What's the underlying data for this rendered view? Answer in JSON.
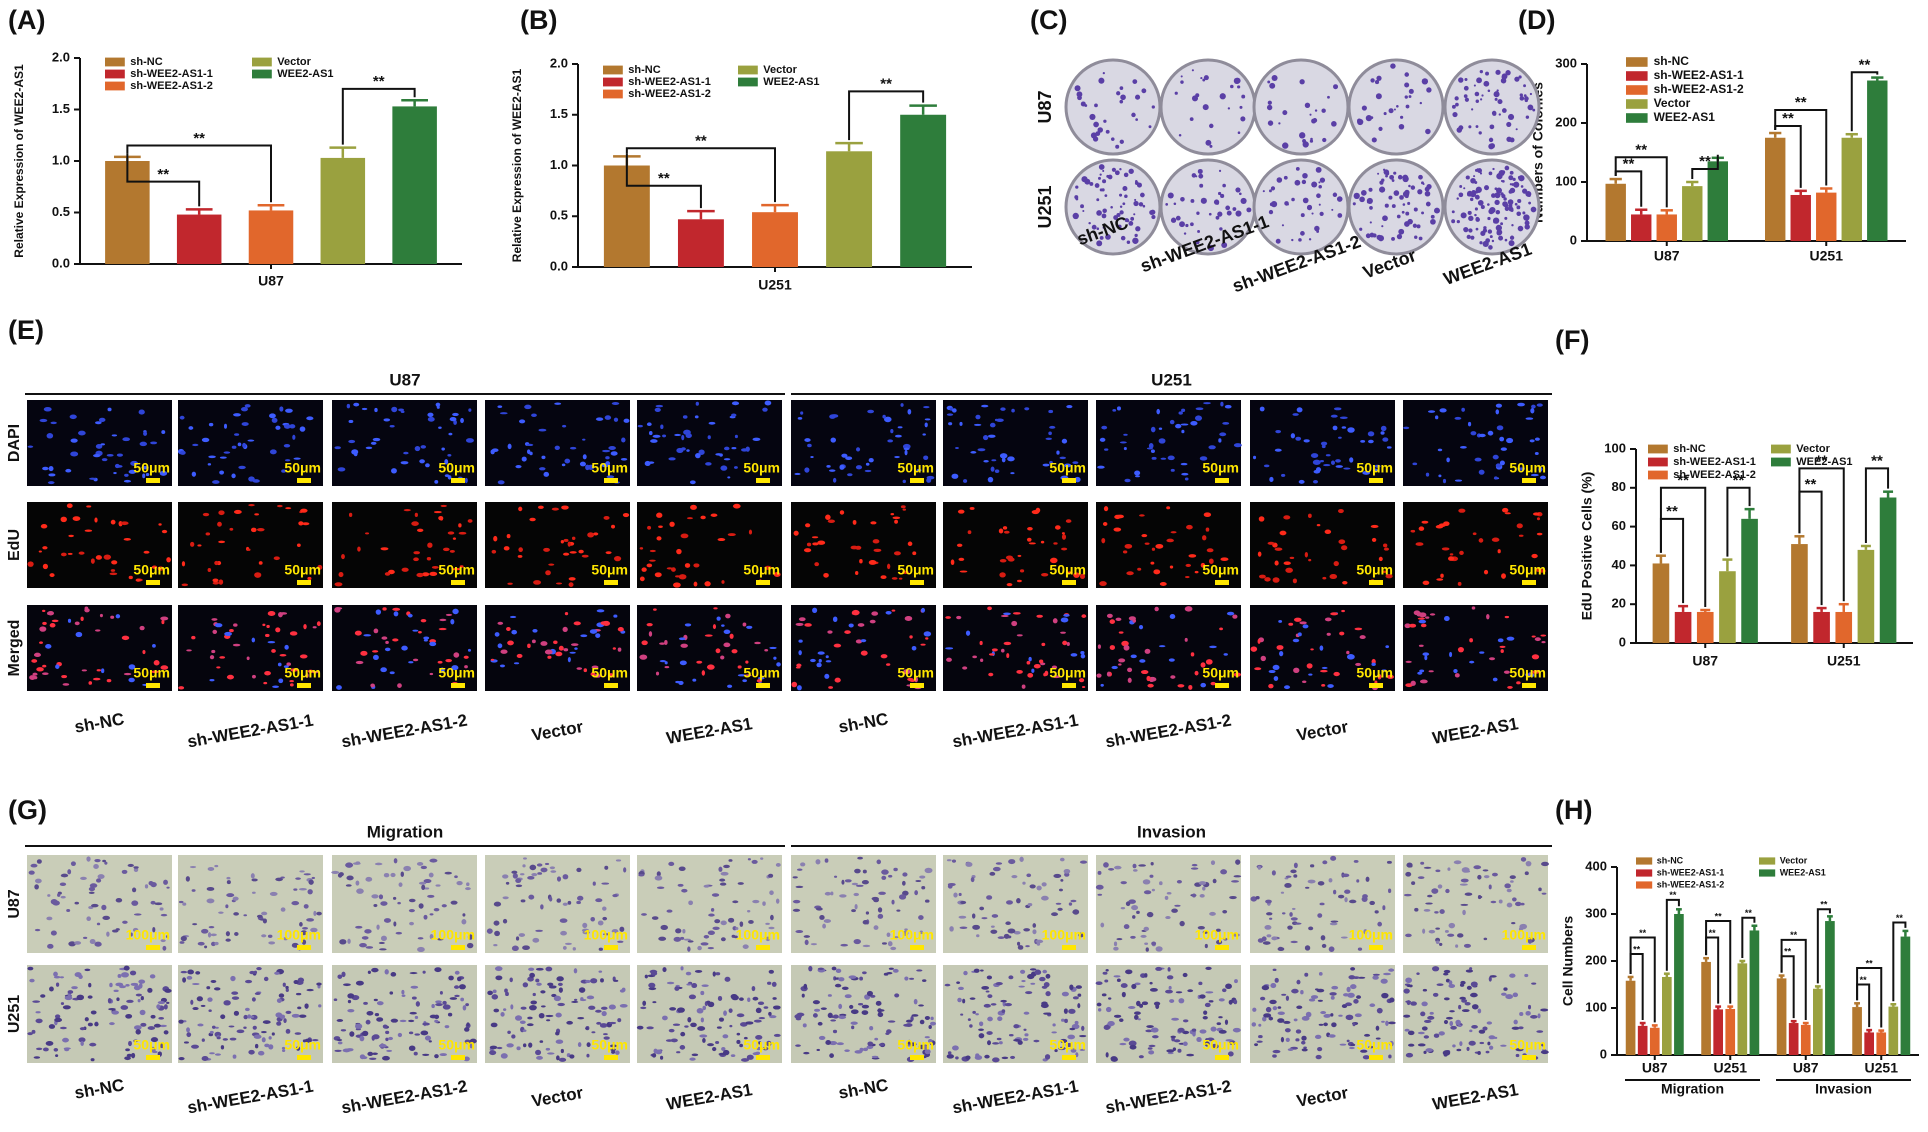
{
  "chart_data": [
    {
      "type": "bar",
      "panel": "(A)",
      "ylabel": "Relative Expression of WEE2-AS1",
      "categories": [
        "U87"
      ],
      "series": [
        {
          "name": "sh-NC",
          "color": "#b3782f",
          "values": [
            1.0
          ],
          "errors": [
            0.04
          ]
        },
        {
          "name": "sh-WEE2-AS1-1",
          "color": "#c1272d",
          "values": [
            0.48
          ],
          "errors": [
            0.05
          ]
        },
        {
          "name": "sh-WEE2-AS1-2",
          "color": "#e1672c",
          "values": [
            0.52
          ],
          "errors": [
            0.05
          ]
        },
        {
          "name": "Vector",
          "color": "#9aa13f",
          "values": [
            1.03
          ],
          "errors": [
            0.1
          ]
        },
        {
          "name": "WEE2-AS1",
          "color": "#2e7d3b",
          "values": [
            1.53
          ],
          "errors": [
            0.06
          ]
        }
      ],
      "ylim": [
        0,
        2
      ],
      "yticks": [
        {
          "value": 0,
          "label": "0.0"
        },
        0.5,
        {
          "value": 1,
          "label": "1.0"
        },
        1.5,
        {
          "value": 2,
          "label": "2.0"
        }
      ],
      "annotations": [
        "**",
        "**",
        "**"
      ]
    },
    {
      "type": "bar",
      "panel": "(B)",
      "ylabel": "Relative Expression of WEE2-AS1",
      "categories": [
        "U251"
      ],
      "series": [
        {
          "name": "sh-NC",
          "color": "#b3782f",
          "values": [
            1.0
          ],
          "errors": [
            0.09
          ]
        },
        {
          "name": "sh-WEE2-AS1-1",
          "color": "#c1272d",
          "values": [
            0.47
          ],
          "errors": [
            0.08
          ]
        },
        {
          "name": "sh-WEE2-AS1-2",
          "color": "#e1672c",
          "values": [
            0.54
          ],
          "errors": [
            0.07
          ]
        },
        {
          "name": "Vector",
          "color": "#9aa13f",
          "values": [
            1.14
          ],
          "errors": [
            0.08
          ]
        },
        {
          "name": "WEE2-AS1",
          "color": "#2e7d3b",
          "values": [
            1.5
          ],
          "errors": [
            0.09
          ]
        }
      ],
      "ylim": [
        0,
        2
      ],
      "yticks": [
        {
          "value": 0,
          "label": "0.0"
        },
        0.5,
        {
          "value": 1,
          "label": "1.0"
        },
        1.5,
        {
          "value": 2,
          "label": "2.0"
        }
      ],
      "annotations": [
        "**",
        "**",
        "**"
      ]
    },
    {
      "type": "bar",
      "panel": "(D)",
      "ylabel": "Numbers of Colonies",
      "categories": [
        "U87",
        "U251"
      ],
      "series": [
        {
          "name": "sh-NC",
          "color": "#b3782f",
          "values": [
            97,
            175
          ],
          "errors": [
            8,
            8
          ]
        },
        {
          "name": "sh-WEE2-AS1-1",
          "color": "#c1272d",
          "values": [
            45,
            78
          ],
          "errors": [
            8,
            7
          ]
        },
        {
          "name": "sh-WEE2-AS1-2",
          "color": "#e1672c",
          "values": [
            45,
            82
          ],
          "errors": [
            7,
            7
          ]
        },
        {
          "name": "Vector",
          "color": "#9aa13f",
          "values": [
            93,
            175
          ],
          "errors": [
            7,
            6
          ]
        },
        {
          "name": "WEE2-AS1",
          "color": "#2e7d3b",
          "values": [
            135,
            272
          ],
          "errors": [
            6,
            5
          ]
        }
      ],
      "ylim": [
        0,
        300
      ],
      "yticks": [
        0,
        100,
        200,
        300
      ],
      "annotations": [
        "**",
        "**",
        "**",
        "**",
        "**",
        "**"
      ]
    },
    {
      "type": "bar",
      "panel": "(F)",
      "ylabel": "EdU Positive Cells (%)",
      "categories": [
        "U87",
        "U251"
      ],
      "series": [
        {
          "name": "sh-NC",
          "color": "#b3782f",
          "values": [
            41,
            51
          ],
          "errors": [
            4,
            4
          ]
        },
        {
          "name": "sh-WEE2-AS1-1",
          "color": "#c1272d",
          "values": [
            16,
            16
          ],
          "errors": [
            3,
            2
          ]
        },
        {
          "name": "sh-WEE2-AS1-2",
          "color": "#e1672c",
          "values": [
            16,
            16
          ],
          "errors": [
            1,
            4
          ]
        },
        {
          "name": "Vector",
          "color": "#9aa13f",
          "values": [
            37,
            48
          ],
          "errors": [
            6,
            2
          ]
        },
        {
          "name": "WEE2-AS1",
          "color": "#2e7d3b",
          "values": [
            64,
            75
          ],
          "errors": [
            5,
            3
          ]
        }
      ],
      "ylim": [
        0,
        100
      ],
      "yticks": [
        0,
        20,
        40,
        60,
        80,
        100
      ],
      "annotations": [
        "**",
        "**",
        "**",
        "**",
        "**",
        "**"
      ]
    },
    {
      "type": "bar",
      "panel": "(H)",
      "ylabel": "Cell Numbers",
      "categories": [
        "U87",
        "U251",
        "U87",
        "U251"
      ],
      "group_labels": [
        "Migration",
        "Invasion"
      ],
      "series": [
        {
          "name": "sh-NC",
          "color": "#b3782f",
          "values": [
            158,
            198,
            163,
            102
          ],
          "errors": [
            8,
            8,
            6,
            8
          ]
        },
        {
          "name": "sh-WEE2-AS1-1",
          "color": "#c1272d",
          "values": [
            62,
            97,
            68,
            48
          ],
          "errors": [
            6,
            6,
            4,
            5
          ]
        },
        {
          "name": "sh-WEE2-AS1-2",
          "color": "#e1672c",
          "values": [
            58,
            98,
            64,
            48
          ],
          "errors": [
            5,
            5,
            4,
            4
          ]
        },
        {
          "name": "Vector",
          "color": "#9aa13f",
          "values": [
            166,
            195,
            141,
            103
          ],
          "errors": [
            7,
            5,
            5,
            5
          ]
        },
        {
          "name": "WEE2-AS1",
          "color": "#2e7d3b",
          "values": [
            300,
            265,
            285,
            252
          ],
          "errors": [
            10,
            10,
            10,
            12
          ]
        }
      ],
      "ylim": [
        0,
        400
      ],
      "yticks": [
        0,
        100,
        200,
        300,
        400
      ],
      "annotations": [
        "**",
        "**",
        "**",
        "**",
        "**",
        "**",
        "**",
        "**",
        "**",
        "**",
        "**",
        "**"
      ]
    }
  ],
  "figures": {
    "C": {
      "panel": "(C)",
      "rows": [
        "U87",
        "U251"
      ],
      "columns": [
        "sh-NC",
        "sh-WEE2-AS1-1",
        "sh-WEE2-AS1-2",
        "Vector",
        "WEE2-AS1"
      ]
    },
    "E": {
      "panel": "(E)",
      "groups": [
        "U87",
        "U251"
      ],
      "rows": [
        "DAPI",
        "EdU",
        "Merged"
      ],
      "scale_bar": "50μm",
      "columns": [
        "sh-NC",
        "sh-WEE2-AS1-1",
        "sh-WEE2-AS1-2",
        "Vector",
        "WEE2-AS1",
        "sh-NC",
        "sh-WEE2-AS1-1",
        "sh-WEE2-AS1-2",
        "Vector",
        "WEE2-AS1"
      ]
    },
    "G": {
      "panel": "(G)",
      "groups": [
        "Migration",
        "Invasion"
      ],
      "rows": [
        "U87",
        "U251"
      ],
      "scale_bars": [
        "100μm",
        "50μm"
      ],
      "columns": [
        "sh-NC",
        "sh-WEE2-AS1-1",
        "sh-WEE2-AS1-2",
        "Vector",
        "WEE2-AS1",
        "sh-NC",
        "sh-WEE2-AS1-1",
        "sh-WEE2-AS1-2",
        "Vector",
        "WEE2-AS1"
      ]
    }
  }
}
